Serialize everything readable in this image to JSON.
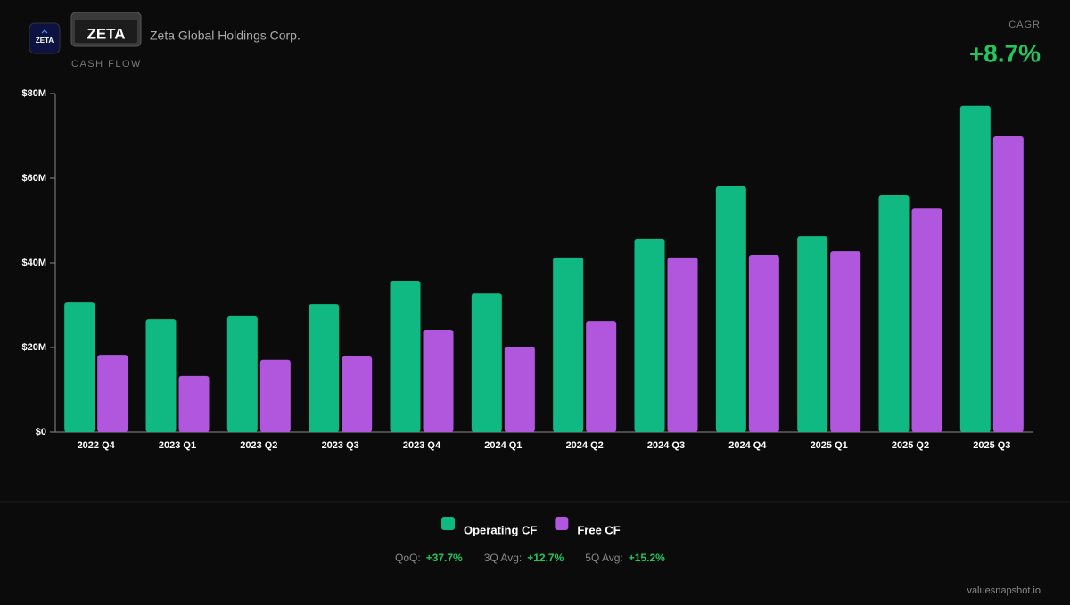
{
  "header": {
    "icon_text": "ZETA",
    "logo_text": "ZETA",
    "company": "Zeta Global Holdings Corp.",
    "section": "CASH FLOW",
    "cagr_label": "CAGR",
    "cagr_value": "+8.7%"
  },
  "chart_data": {
    "type": "bar",
    "categories": [
      "2022 Q4",
      "2023 Q1",
      "2023 Q2",
      "2023 Q3",
      "2023 Q4",
      "2024 Q1",
      "2024 Q2",
      "2024 Q3",
      "2024 Q4",
      "2025 Q1",
      "2025 Q2",
      "2025 Q3"
    ],
    "series": [
      {
        "name": "Operating CF",
        "color": "#10b981",
        "values": [
          30.7,
          26.7,
          27.4,
          30.3,
          35.8,
          32.8,
          41.3,
          45.7,
          58.1,
          46.3,
          56.0,
          77.1
        ]
      },
      {
        "name": "Free CF",
        "color": "#b057dd",
        "values": [
          18.3,
          13.3,
          17.1,
          17.9,
          24.2,
          20.2,
          26.3,
          41.3,
          41.9,
          42.7,
          52.8,
          69.9
        ]
      }
    ],
    "ylim": [
      0,
      80
    ],
    "yticks": [
      {
        "value": 0,
        "label": "$0"
      },
      {
        "value": 20,
        "label": "$20M"
      },
      {
        "value": 40,
        "label": "$40M"
      },
      {
        "value": 60,
        "label": "$60M"
      },
      {
        "value": 80,
        "label": "$80M"
      }
    ]
  },
  "stats": [
    {
      "label": "QoQ:",
      "value": "+37.7%"
    },
    {
      "label": "3Q Avg:",
      "value": "+12.7%"
    },
    {
      "label": "5Q Avg:",
      "value": "+15.2%"
    }
  ],
  "footer": "valuesnapshot.io"
}
